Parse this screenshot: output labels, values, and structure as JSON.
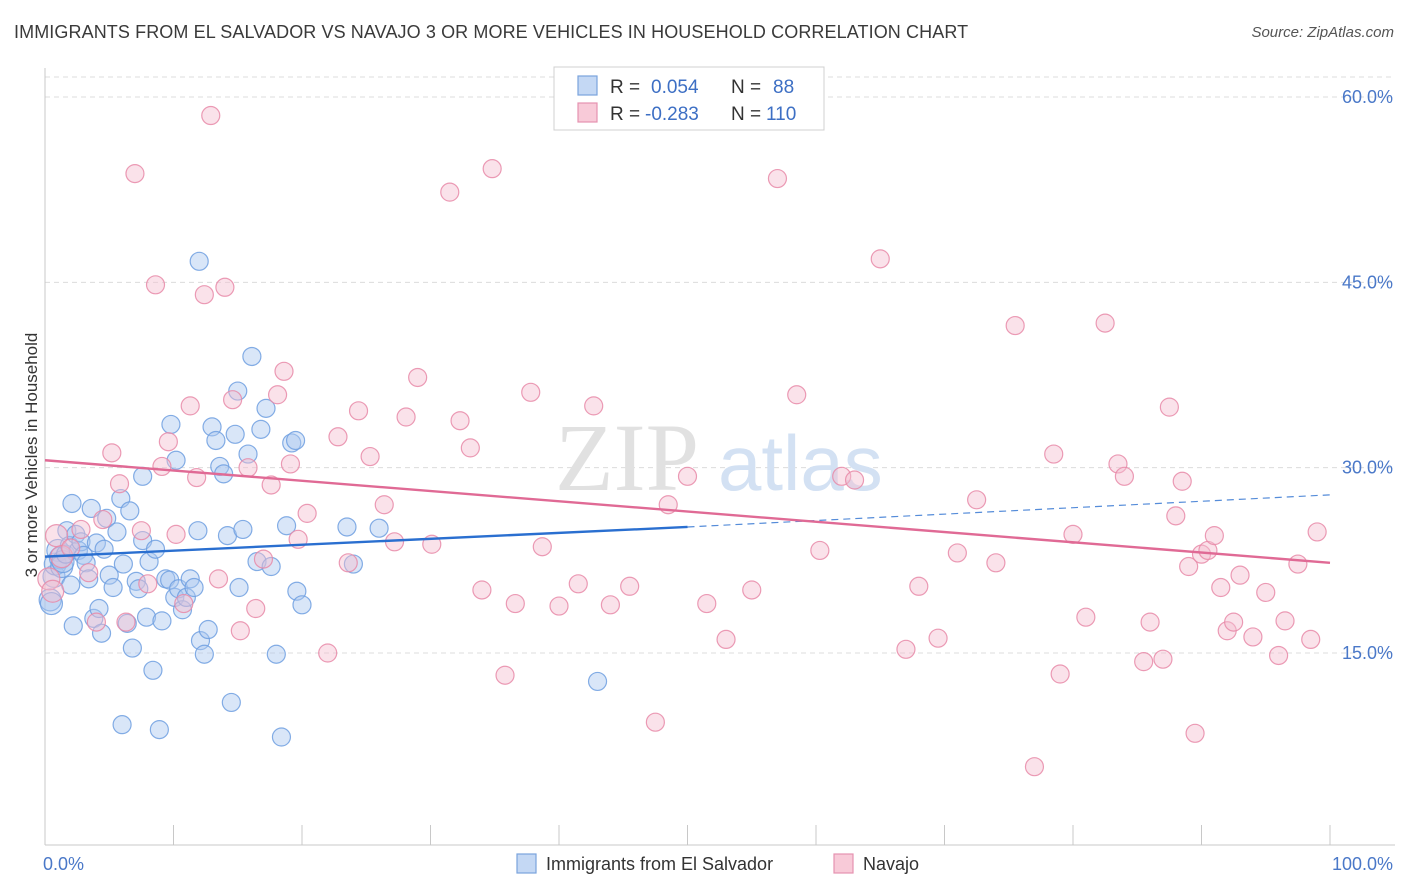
{
  "title": "IMMIGRANTS FROM EL SALVADOR VS NAVAJO 3 OR MORE VEHICLES IN HOUSEHOLD CORRELATION CHART",
  "source": "Source: ZipAtlas.com",
  "watermark": {
    "zip": "ZIP",
    "atlas": "atlas"
  },
  "colors": {
    "blue": "#6f9fe0",
    "blue_fill": "#aac8f0",
    "blue_line": "#2a6fd0",
    "pink": "#e889a8",
    "pink_fill": "#f5bfd0",
    "pink_line": "#e06a95",
    "grid": "#dcdcdc",
    "tick_text": "#4a78c8"
  },
  "legend": {
    "rows": [
      {
        "r_label": "R =",
        "r_value": "0.054",
        "n_label": "N =",
        "n_value": "88",
        "color": "blue"
      },
      {
        "r_label": "R =",
        "r_value": "-0.283",
        "n_label": "N =",
        "n_value": "110",
        "color": "pink"
      }
    ]
  },
  "bottom_legend": [
    "Immigrants from El Salvador",
    "Navajo"
  ],
  "chart_data": {
    "type": "scatter",
    "title": "IMMIGRANTS FROM EL SALVADOR VS NAVAJO 3 OR MORE VEHICLES IN HOUSEHOLD CORRELATION CHART",
    "xlabel": "",
    "ylabel": "3 or more Vehicles in Household",
    "xlim": [
      0,
      100
    ],
    "ylim": [
      0,
      63
    ],
    "x_tick_labels": [
      "0.0%",
      "100.0%"
    ],
    "y_ticks": [
      15,
      30,
      45,
      60
    ],
    "y_tick_labels": [
      "15.0%",
      "30.0%",
      "45.0%",
      "60.0%"
    ],
    "grid": true,
    "legend_position": "top-center",
    "series": [
      {
        "name": "Immigrants from El Salvador",
        "color": "blue",
        "r": 0.054,
        "n": 88,
        "trend": {
          "x": [
            0,
            50
          ],
          "y": [
            22.8,
            25.2
          ],
          "dashed_to": [
            100,
            27.8
          ]
        },
        "points": [
          [
            0.4,
            19.3
          ],
          [
            0.5,
            19.0
          ],
          [
            0.7,
            21.2
          ],
          [
            0.8,
            22.2
          ],
          [
            1.0,
            23.3
          ],
          [
            1.2,
            22.7
          ],
          [
            1.3,
            22.0
          ],
          [
            1.4,
            22.4
          ],
          [
            1.6,
            23.0
          ],
          [
            1.7,
            24.9
          ],
          [
            1.9,
            23.7
          ],
          [
            2.0,
            20.5
          ],
          [
            2.1,
            27.1
          ],
          [
            2.2,
            17.2
          ],
          [
            2.4,
            24.6
          ],
          [
            2.6,
            23.3
          ],
          [
            2.8,
            24.0
          ],
          [
            3.0,
            22.9
          ],
          [
            3.2,
            22.3
          ],
          [
            3.4,
            21.0
          ],
          [
            3.6,
            26.7
          ],
          [
            3.8,
            17.8
          ],
          [
            4.0,
            23.9
          ],
          [
            4.2,
            18.6
          ],
          [
            4.4,
            16.6
          ],
          [
            4.6,
            23.4
          ],
          [
            4.8,
            25.9
          ],
          [
            5.0,
            21.3
          ],
          [
            5.3,
            20.3
          ],
          [
            5.6,
            24.8
          ],
          [
            5.9,
            27.5
          ],
          [
            6.1,
            22.2
          ],
          [
            6.4,
            17.4
          ],
          [
            6.6,
            26.5
          ],
          [
            6.8,
            15.4
          ],
          [
            7.1,
            20.8
          ],
          [
            7.3,
            20.2
          ],
          [
            7.6,
            24.1
          ],
          [
            7.9,
            17.9
          ],
          [
            8.1,
            22.4
          ],
          [
            8.4,
            13.6
          ],
          [
            8.6,
            23.4
          ],
          [
            8.9,
            8.8
          ],
          [
            9.1,
            17.6
          ],
          [
            9.4,
            21.0
          ],
          [
            9.7,
            20.9
          ],
          [
            10.1,
            19.5
          ],
          [
            10.4,
            20.2
          ],
          [
            10.7,
            18.5
          ],
          [
            11.0,
            19.5
          ],
          [
            11.3,
            21.0
          ],
          [
            11.6,
            20.3
          ],
          [
            11.9,
            24.9
          ],
          [
            12.1,
            16.0
          ],
          [
            12.4,
            14.9
          ],
          [
            12.7,
            16.9
          ],
          [
            13.0,
            33.3
          ],
          [
            13.3,
            32.2
          ],
          [
            13.6,
            30.1
          ],
          [
            13.9,
            29.5
          ],
          [
            14.2,
            24.5
          ],
          [
            14.5,
            11.0
          ],
          [
            14.8,
            32.7
          ],
          [
            15.1,
            20.3
          ],
          [
            15.4,
            25.0
          ],
          [
            15.8,
            31.1
          ],
          [
            16.1,
            39.0
          ],
          [
            16.5,
            22.4
          ],
          [
            16.8,
            33.1
          ],
          [
            17.2,
            34.8
          ],
          [
            17.6,
            22.0
          ],
          [
            18.0,
            14.9
          ],
          [
            18.4,
            8.2
          ],
          [
            18.8,
            25.3
          ],
          [
            19.2,
            32.0
          ],
          [
            19.6,
            20.0
          ],
          [
            20.0,
            18.9
          ],
          [
            23.5,
            25.2
          ],
          [
            24.0,
            22.2
          ],
          [
            26.0,
            25.1
          ],
          [
            12.0,
            46.7
          ],
          [
            15.0,
            36.2
          ],
          [
            7.6,
            29.3
          ],
          [
            6.0,
            9.2
          ],
          [
            10.2,
            30.6
          ],
          [
            19.5,
            32.2
          ],
          [
            43.0,
            12.7
          ],
          [
            9.8,
            33.5
          ]
        ]
      },
      {
        "name": "Navajo",
        "color": "pink",
        "r": -0.283,
        "n": 110,
        "trend": {
          "x": [
            0,
            100
          ],
          "y": [
            30.6,
            22.3
          ]
        },
        "points": [
          [
            0.3,
            21.0
          ],
          [
            0.6,
            20.0
          ],
          [
            0.9,
            24.5
          ],
          [
            1.3,
            22.8
          ],
          [
            2.0,
            23.5
          ],
          [
            2.8,
            25.0
          ],
          [
            3.4,
            21.5
          ],
          [
            4.0,
            17.5
          ],
          [
            4.5,
            25.8
          ],
          [
            5.2,
            31.2
          ],
          [
            5.8,
            28.7
          ],
          [
            6.3,
            17.5
          ],
          [
            7.0,
            53.8
          ],
          [
            7.5,
            24.9
          ],
          [
            8.0,
            20.6
          ],
          [
            8.6,
            44.8
          ],
          [
            9.1,
            30.1
          ],
          [
            9.6,
            32.1
          ],
          [
            10.2,
            24.6
          ],
          [
            10.8,
            19.0
          ],
          [
            11.3,
            35.0
          ],
          [
            11.8,
            29.2
          ],
          [
            12.4,
            44.0
          ],
          [
            12.9,
            58.5
          ],
          [
            13.5,
            21.0
          ],
          [
            14.0,
            44.6
          ],
          [
            14.6,
            35.5
          ],
          [
            15.2,
            16.8
          ],
          [
            15.8,
            30.0
          ],
          [
            16.4,
            18.6
          ],
          [
            17.0,
            22.6
          ],
          [
            17.6,
            28.6
          ],
          [
            18.1,
            35.9
          ],
          [
            18.6,
            37.8
          ],
          [
            19.1,
            30.3
          ],
          [
            19.7,
            24.2
          ],
          [
            20.4,
            26.3
          ],
          [
            22.0,
            15.0
          ],
          [
            22.8,
            32.5
          ],
          [
            23.6,
            22.3
          ],
          [
            24.4,
            34.6
          ],
          [
            25.3,
            30.9
          ],
          [
            26.4,
            27.0
          ],
          [
            27.2,
            24.0
          ],
          [
            28.1,
            34.1
          ],
          [
            29.0,
            37.3
          ],
          [
            30.1,
            23.8
          ],
          [
            31.5,
            52.3
          ],
          [
            32.3,
            33.8
          ],
          [
            33.1,
            31.6
          ],
          [
            34.0,
            20.1
          ],
          [
            34.8,
            54.2
          ],
          [
            35.8,
            13.2
          ],
          [
            36.6,
            19.0
          ],
          [
            37.8,
            36.1
          ],
          [
            38.7,
            23.6
          ],
          [
            40.0,
            18.8
          ],
          [
            41.5,
            20.6
          ],
          [
            42.7,
            35.0
          ],
          [
            44.0,
            18.9
          ],
          [
            45.5,
            20.4
          ],
          [
            47.5,
            9.4
          ],
          [
            48.5,
            27.0
          ],
          [
            50.0,
            29.3
          ],
          [
            51.5,
            19.0
          ],
          [
            53.0,
            16.1
          ],
          [
            55.0,
            20.1
          ],
          [
            57.0,
            53.4
          ],
          [
            58.5,
            35.9
          ],
          [
            60.3,
            23.3
          ],
          [
            62.0,
            29.3
          ],
          [
            63.0,
            29.0
          ],
          [
            65.0,
            46.9
          ],
          [
            67.0,
            15.3
          ],
          [
            68.0,
            20.4
          ],
          [
            69.5,
            16.2
          ],
          [
            71.0,
            23.1
          ],
          [
            72.5,
            27.4
          ],
          [
            74.0,
            22.3
          ],
          [
            75.5,
            41.5
          ],
          [
            77.0,
            5.8
          ],
          [
            78.5,
            31.1
          ],
          [
            79.0,
            13.3
          ],
          [
            80.0,
            24.6
          ],
          [
            81.0,
            17.9
          ],
          [
            82.5,
            41.7
          ],
          [
            83.5,
            30.3
          ],
          [
            84.0,
            29.3
          ],
          [
            85.5,
            14.3
          ],
          [
            86.0,
            17.5
          ],
          [
            87.0,
            14.5
          ],
          [
            87.5,
            34.9
          ],
          [
            88.0,
            26.1
          ],
          [
            88.5,
            28.9
          ],
          [
            89.0,
            22.0
          ],
          [
            89.5,
            8.5
          ],
          [
            90.0,
            23.0
          ],
          [
            90.5,
            23.3
          ],
          [
            91.0,
            24.5
          ],
          [
            91.5,
            20.3
          ],
          [
            92.0,
            16.8
          ],
          [
            92.5,
            17.5
          ],
          [
            93.0,
            21.3
          ],
          [
            94.0,
            16.3
          ],
          [
            95.0,
            19.9
          ],
          [
            96.0,
            14.8
          ],
          [
            96.5,
            17.6
          ],
          [
            97.5,
            22.2
          ],
          [
            98.5,
            16.1
          ],
          [
            99.0,
            24.8
          ]
        ]
      }
    ]
  }
}
